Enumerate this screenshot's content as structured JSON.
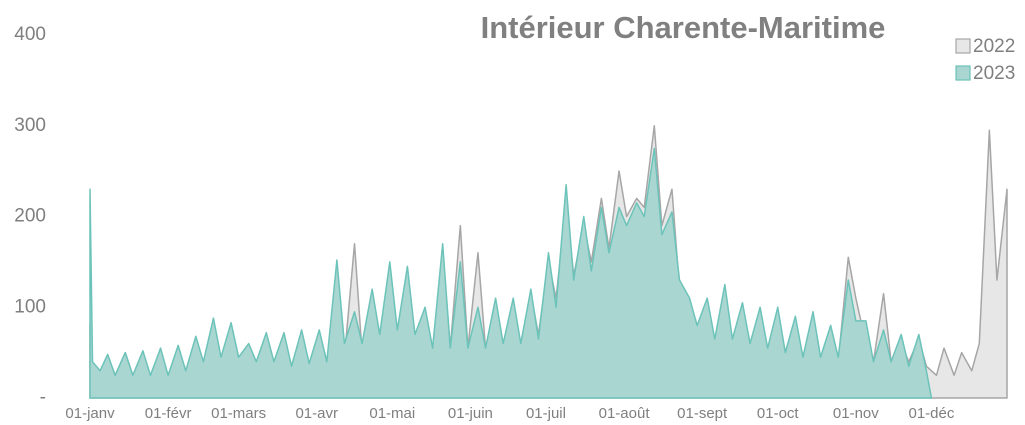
{
  "chart_data": {
    "type": "area",
    "title": "Intérieur Charente-Maritime",
    "x": [
      0,
      1,
      4,
      7,
      10,
      14,
      17,
      21,
      24,
      28,
      31,
      35,
      38,
      42,
      45,
      49,
      52,
      56,
      59,
      63,
      66,
      70,
      73,
      77,
      80,
      84,
      87,
      91,
      94,
      98,
      101,
      105,
      108,
      112,
      115,
      119,
      122,
      126,
      129,
      133,
      136,
      140,
      143,
      147,
      150,
      154,
      157,
      161,
      164,
      168,
      171,
      175,
      178,
      182,
      185,
      189,
      192,
      196,
      199,
      203,
      206,
      210,
      213,
      217,
      220,
      224,
      227,
      231,
      234,
      238,
      241,
      245,
      248,
      252,
      255,
      259,
      262,
      266,
      269,
      273,
      276,
      280,
      283,
      287,
      290,
      294,
      297,
      301,
      304,
      308,
      311,
      315,
      318,
      322,
      325,
      329,
      332,
      334,
      336,
      339,
      343,
      346,
      350,
      353,
      357,
      360,
      364
    ],
    "series": [
      {
        "name": "2022",
        "color": "#a6a6a6",
        "fill": "#e7e7e7",
        "values": [
          80,
          35,
          25,
          45,
          25,
          50,
          25,
          40,
          25,
          50,
          25,
          55,
          30,
          60,
          40,
          75,
          45,
          70,
          45,
          55,
          40,
          60,
          35,
          68,
          35,
          70,
          35,
          72,
          40,
          65,
          45,
          170,
          50,
          100,
          50,
          95,
          60,
          120,
          65,
          95,
          55,
          160,
          55,
          190,
          55,
          160,
          55,
          100,
          55,
          100,
          60,
          115,
          70,
          150,
          110,
          215,
          135,
          190,
          150,
          220,
          165,
          250,
          200,
          220,
          210,
          300,
          190,
          230,
          120,
          100,
          70,
          105,
          60,
          115,
          60,
          100,
          60,
          95,
          50,
          95,
          50,
          85,
          45,
          90,
          40,
          75,
          40,
          155,
          110,
          60,
          40,
          115,
          40,
          60,
          40,
          65,
          35,
          30,
          25,
          55,
          25,
          50,
          30,
          60,
          295,
          130,
          230
        ]
      },
      {
        "name": "2023",
        "color": "#6cc3b9",
        "fill": "#a9d6d1",
        "values": [
          230,
          40,
          30,
          48,
          25,
          50,
          25,
          52,
          25,
          55,
          25,
          58,
          30,
          68,
          40,
          88,
          45,
          83,
          45,
          60,
          40,
          72,
          40,
          72,
          35,
          75,
          38,
          75,
          40,
          152,
          60,
          95,
          60,
          120,
          70,
          150,
          75,
          145,
          70,
          100,
          55,
          170,
          55,
          150,
          55,
          100,
          55,
          110,
          60,
          110,
          60,
          120,
          65,
          160,
          100,
          235,
          130,
          200,
          140,
          210,
          160,
          210,
          190,
          215,
          200,
          275,
          180,
          205,
          130,
          110,
          80,
          110,
          65,
          125,
          65,
          105,
          60,
          100,
          55,
          100,
          50,
          90,
          45,
          95,
          45,
          80,
          45,
          130,
          85,
          85,
          40,
          75,
          40,
          70,
          35,
          70,
          30,
          0,
          null,
          null,
          null,
          null,
          null,
          null,
          null,
          null,
          null
        ]
      }
    ],
    "xlim": [
      0,
      364
    ],
    "xticks": [
      {
        "value": 0,
        "label": "01-janv"
      },
      {
        "value": 31,
        "label": "01-févr"
      },
      {
        "value": 59,
        "label": "01-mars"
      },
      {
        "value": 90,
        "label": "01-avr"
      },
      {
        "value": 120,
        "label": "01-mai"
      },
      {
        "value": 151,
        "label": "01-juin"
      },
      {
        "value": 181,
        "label": "01-juil"
      },
      {
        "value": 212,
        "label": "01-août"
      },
      {
        "value": 243,
        "label": "01-sept"
      },
      {
        "value": 273,
        "label": "01-oct"
      },
      {
        "value": 304,
        "label": "01-nov"
      },
      {
        "value": 334,
        "label": "01-déc"
      }
    ],
    "ylim": [
      0,
      400
    ],
    "yticks": [
      {
        "value": 0,
        "label": "-"
      },
      100,
      200,
      300,
      400
    ],
    "legend": "top-right"
  }
}
